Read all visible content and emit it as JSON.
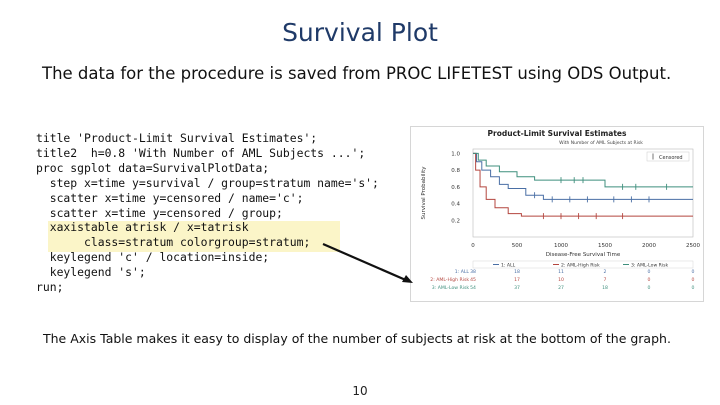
{
  "slide": {
    "title": "Survival Plot",
    "subtitle": "The data for the procedure is saved from PROC LIFETEST using ODS Output.",
    "caption": "The Axis Table makes it easy to display of the number of subjects at risk at the bottom of the graph.",
    "page_number": "10"
  },
  "code_lines": [
    "title 'Product-Limit Survival Estimates';",
    "title2  h=0.8 'With Number of AML Subjects ...';",
    "proc sgplot data=SurvivalPlotData;",
    "  step x=time y=survival / group=stratum name='s';",
    "  scatter x=time y=censored / name='c';",
    "  scatter x=time y=censored / group;",
    "  xaxistable atrisk / x=tatrisk",
    "       class=stratum colorgroup=stratum;",
    "  keylegend 'c' / location=inside;",
    "  keylegend 's';",
    "run;"
  ],
  "colors": {
    "title": "#1f3a68",
    "highlight": "#fbf5c8",
    "series_all": "#4a6fa5",
    "series_high": "#b4463f",
    "series_low": "#3f8f7d"
  },
  "chart_data": {
    "type": "line",
    "title": "Product-Limit Survival Estimates",
    "subtitle": "With Number of AML Subjects at Risk",
    "xlabel": "Disease-Free Survival Time",
    "ylabel": "Survival Probability",
    "xlim": [
      0,
      2500
    ],
    "ylim": [
      0.0,
      1.0
    ],
    "xticks": [
      "0",
      "500",
      "1000",
      "1500",
      "2000",
      "2500"
    ],
    "yticks": [
      "1.0",
      "0.8",
      "0.6",
      "0.4",
      "0.2"
    ],
    "legend_inside": "Censored",
    "legend_entries": [
      "1: ALL",
      "2: AML-High Risk",
      "3: AML-Low Risk"
    ],
    "series": [
      {
        "name": "1: ALL",
        "points": [
          [
            0,
            1.0
          ],
          [
            40,
            0.9
          ],
          [
            100,
            0.8
          ],
          [
            200,
            0.72
          ],
          [
            300,
            0.63
          ],
          [
            400,
            0.58
          ],
          [
            600,
            0.5
          ],
          [
            800,
            0.45
          ],
          [
            1100,
            0.45
          ],
          [
            1400,
            0.45
          ],
          [
            2500,
            0.45
          ]
        ],
        "censored": [
          700,
          900,
          1100,
          1300,
          1600,
          1800,
          2000
        ]
      },
      {
        "name": "2: AML-High Risk",
        "points": [
          [
            0,
            1.0
          ],
          [
            30,
            0.8
          ],
          [
            80,
            0.6
          ],
          [
            150,
            0.45
          ],
          [
            250,
            0.35
          ],
          [
            400,
            0.28
          ],
          [
            550,
            0.25
          ],
          [
            2500,
            0.25
          ]
        ],
        "censored": [
          800,
          1000,
          1200,
          1400,
          1700
        ]
      },
      {
        "name": "3: AML-Low Risk",
        "points": [
          [
            0,
            1.0
          ],
          [
            60,
            0.92
          ],
          [
            150,
            0.85
          ],
          [
            300,
            0.78
          ],
          [
            500,
            0.72
          ],
          [
            700,
            0.68
          ],
          [
            900,
            0.68
          ],
          [
            1300,
            0.68
          ],
          [
            1500,
            0.6
          ],
          [
            2000,
            0.6
          ],
          [
            2500,
            0.6
          ]
        ],
        "censored": [
          1000,
          1150,
          1250,
          1700,
          1850,
          2200
        ]
      }
    ],
    "atrisk": {
      "times": [
        0,
        500,
        1000,
        1500,
        2000,
        2500
      ],
      "rows": [
        {
          "name": "1: ALL",
          "values": [
            "38",
            "18",
            "11",
            "2",
            "0",
            "0"
          ]
        },
        {
          "name": "2: AML-High Risk",
          "values": [
            "45",
            "17",
            "10",
            "7",
            "0",
            "0"
          ]
        },
        {
          "name": "3: AML-Low Risk",
          "values": [
            "54",
            "37",
            "27",
            "18",
            "0",
            "0"
          ]
        }
      ]
    }
  }
}
